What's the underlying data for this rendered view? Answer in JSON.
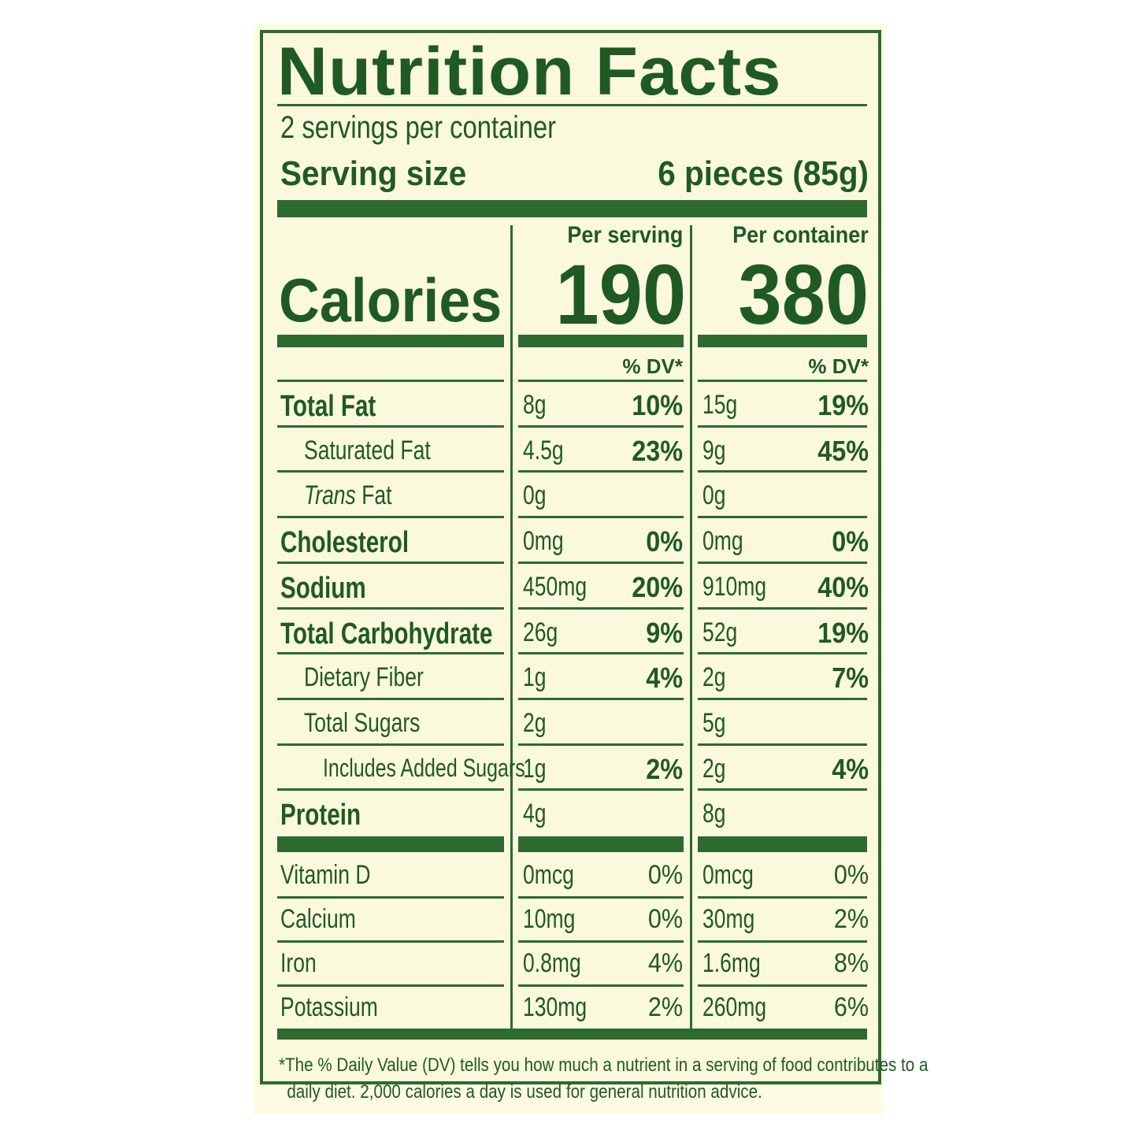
{
  "title": "Nutrition Facts",
  "servings_per_container": "2 servings per container",
  "serving_size_label": "Serving size",
  "serving_size_value": "6 pieces (85g)",
  "per_serving_label": "Per serving",
  "per_container_label": "Per container",
  "calories_label": "Calories",
  "calories_per_serving": "190",
  "calories_per_container": "380",
  "dv_label": "% DV*",
  "nutrients": [
    {
      "name": "Total Fat",
      "style": "bold",
      "indent": 0,
      "serving_amount": "8g",
      "serving_dv": "10%",
      "container_amount": "15g",
      "container_dv": "19%"
    },
    {
      "name": "Saturated Fat",
      "style": "normal",
      "indent": 1,
      "serving_amount": "4.5g",
      "serving_dv": "23%",
      "container_amount": "9g",
      "container_dv": "45%"
    },
    {
      "name": "Trans Fat",
      "style": "normal",
      "indent": 1,
      "italic_prefix": "Trans",
      "rest": " Fat",
      "serving_amount": "0g",
      "serving_dv": "",
      "container_amount": "0g",
      "container_dv": ""
    },
    {
      "name": "Cholesterol",
      "style": "bold",
      "indent": 0,
      "serving_amount": "0mg",
      "serving_dv": "0%",
      "container_amount": "0mg",
      "container_dv": "0%"
    },
    {
      "name": "Sodium",
      "style": "bold",
      "indent": 0,
      "serving_amount": "450mg",
      "serving_dv": "20%",
      "container_amount": "910mg",
      "container_dv": "40%"
    },
    {
      "name": "Total Carbohydrate",
      "style": "bold",
      "indent": 0,
      "serving_amount": "26g",
      "serving_dv": "9%",
      "container_amount": "52g",
      "container_dv": "19%"
    },
    {
      "name": "Dietary Fiber",
      "style": "normal",
      "indent": 1,
      "serving_amount": "1g",
      "serving_dv": "4%",
      "container_amount": "2g",
      "container_dv": "7%"
    },
    {
      "name": "Total Sugars",
      "style": "normal",
      "indent": 1,
      "serving_amount": "2g",
      "serving_dv": "",
      "container_amount": "5g",
      "container_dv": ""
    },
    {
      "name": "Includes Added Sugars",
      "style": "normal",
      "indent": 2,
      "serving_amount": "1g",
      "serving_dv": "2%",
      "container_amount": "2g",
      "container_dv": "4%"
    },
    {
      "name": "Protein",
      "style": "bold",
      "indent": 0,
      "serving_amount": "4g",
      "serving_dv": "",
      "container_amount": "8g",
      "container_dv": ""
    }
  ],
  "vitamins": [
    {
      "name": "Vitamin D",
      "serving_amount": "0mcg",
      "serving_dv": "0%",
      "container_amount": "0mcg",
      "container_dv": "0%"
    },
    {
      "name": "Calcium",
      "serving_amount": "10mg",
      "serving_dv": "0%",
      "container_amount": "30mg",
      "container_dv": "2%"
    },
    {
      "name": "Iron",
      "serving_amount": "0.8mg",
      "serving_dv": "4%",
      "container_amount": "1.6mg",
      "container_dv": "8%"
    },
    {
      "name": "Potassium",
      "serving_amount": "130mg",
      "serving_dv": "2%",
      "container_amount": "260mg",
      "container_dv": "6%"
    }
  ],
  "footnote_line1": "*The % Daily Value (DV) tells you how much a nutrient in a serving of food contributes to a",
  "footnote_line2": "daily diet. 2,000 calories a day is used for general nutrition advice.",
  "colors": {
    "ink": "#2d6a2f",
    "paper": "#fbf9dd"
  }
}
